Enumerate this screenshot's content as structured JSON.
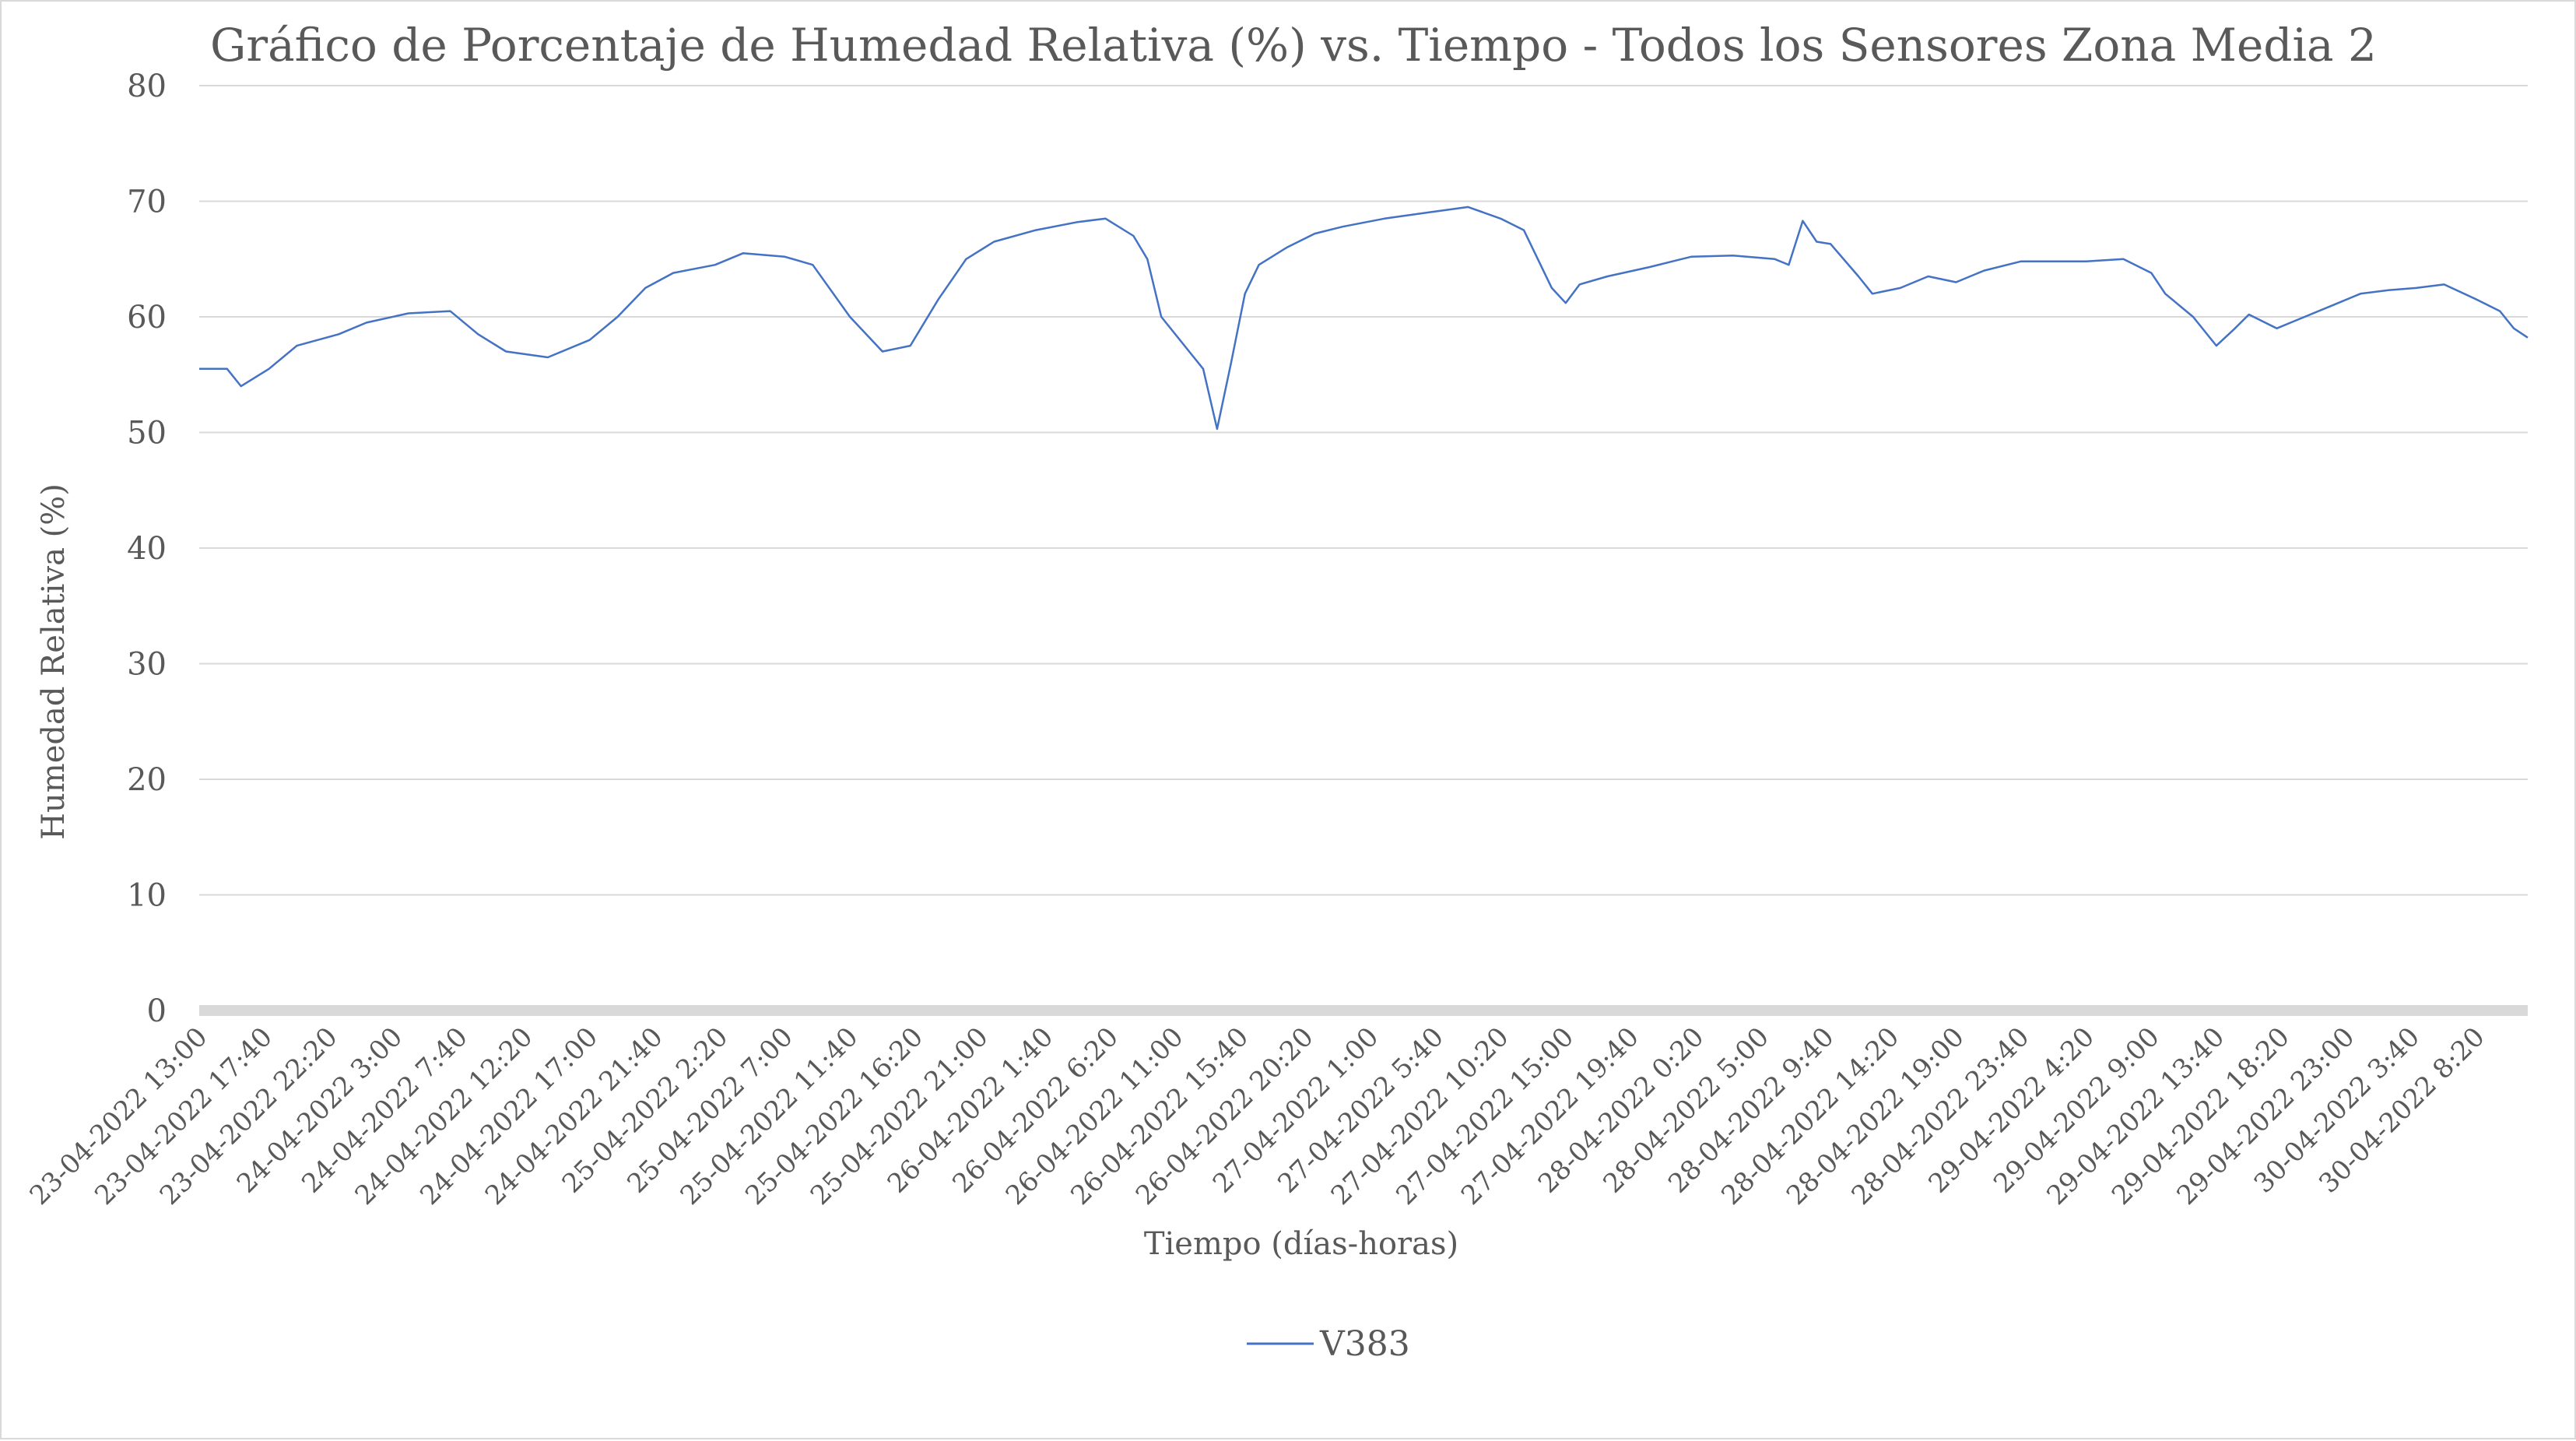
{
  "chart_data": {
    "type": "line",
    "title": "Gráfico de Porcentaje de Humedad Relativa (%) vs. Tiempo - Todos los Sensores Zona Media 2",
    "xlabel": "Tiempo (días-horas)",
    "ylabel": "Humedad Relativa (%)",
    "ylim": [
      0,
      80
    ],
    "yticks": [
      "0",
      "10",
      "20",
      "30",
      "40",
      "50",
      "60",
      "70",
      "80"
    ],
    "grid": true,
    "legend_position": "bottom",
    "colors": {
      "series": "#4472c4",
      "grid": "#d9d9d9",
      "text": "#595959"
    },
    "x_tick_labels": [
      "23-04-2022 13:00",
      "23-04-2022 17:40",
      "23-04-2022 22:20",
      "24-04-2022 3:00",
      "24-04-2022 7:40",
      "24-04-2022 12:20",
      "24-04-2022 17:00",
      "24-04-2022 21:40",
      "25-04-2022 2:20",
      "25-04-2022 7:00",
      "25-04-2022 11:40",
      "25-04-2022 16:20",
      "25-04-2022 21:00",
      "26-04-2022 1:40",
      "26-04-2022 6:20",
      "26-04-2022 11:00",
      "26-04-2022 15:40",
      "26-04-2022 20:20",
      "27-04-2022 1:00",
      "27-04-2022 5:40",
      "27-04-2022 10:20",
      "27-04-2022 15:00",
      "27-04-2022 19:40",
      "28-04-2022 0:20",
      "28-04-2022 5:00",
      "28-04-2022 9:40",
      "28-04-2022 14:20",
      "28-04-2022 19:00",
      "28-04-2022 23:40",
      "29-04-2022 4:20",
      "29-04-2022 9:00",
      "29-04-2022 13:40",
      "29-04-2022 18:20",
      "29-04-2022 23:00",
      "30-04-2022 3:40",
      "30-04-2022 8:20"
    ],
    "series": [
      {
        "name": "V383",
        "x": [
          "23-04-2022 13:00",
          "23-04-2022 15:00",
          "23-04-2022 16:00",
          "23-04-2022 18:00",
          "23-04-2022 20:00",
          "23-04-2022 23:00",
          "24-04-2022 1:00",
          "24-04-2022 4:00",
          "24-04-2022 7:00",
          "24-04-2022 9:00",
          "24-04-2022 11:00",
          "24-04-2022 14:00",
          "24-04-2022 17:00",
          "24-04-2022 19:00",
          "24-04-2022 21:00",
          "24-04-2022 23:00",
          "25-04-2022 2:00",
          "25-04-2022 4:00",
          "25-04-2022 7:00",
          "25-04-2022 9:00",
          "25-04-2022 11:40",
          "25-04-2022 14:00",
          "25-04-2022 16:00",
          "25-04-2022 18:00",
          "25-04-2022 20:00",
          "25-04-2022 22:00",
          "26-04-2022 1:00",
          "26-04-2022 4:00",
          "26-04-2022 6:00",
          "26-04-2022 8:00",
          "26-04-2022 9:00",
          "26-04-2022 10:00",
          "26-04-2022 12:00",
          "26-04-2022 13:00",
          "26-04-2022 14:00",
          "26-04-2022 15:00",
          "26-04-2022 16:00",
          "26-04-2022 17:00",
          "26-04-2022 19:00",
          "26-04-2022 21:00",
          "26-04-2022 23:00",
          "27-04-2022 2:00",
          "27-04-2022 5:00",
          "27-04-2022 8:00",
          "27-04-2022 10:20",
          "27-04-2022 12:00",
          "27-04-2022 14:00",
          "27-04-2022 15:00",
          "27-04-2022 16:00",
          "27-04-2022 18:00",
          "27-04-2022 21:00",
          "28-04-2022 0:00",
          "28-04-2022 3:00",
          "28-04-2022 6:00",
          "28-04-2022 7:00",
          "28-04-2022 8:00",
          "28-04-2022 9:00",
          "28-04-2022 10:00",
          "28-04-2022 12:00",
          "28-04-2022 13:00",
          "28-04-2022 15:00",
          "28-04-2022 17:00",
          "28-04-2022 19:00",
          "28-04-2022 21:00",
          "28-04-2022 23:40",
          "29-04-2022 2:00",
          "29-04-2022 4:20",
          "29-04-2022 7:00",
          "29-04-2022 9:00",
          "29-04-2022 10:00",
          "29-04-2022 12:00",
          "29-04-2022 13:40",
          "29-04-2022 15:00",
          "29-04-2022 16:00",
          "29-04-2022 18:00",
          "29-04-2022 19:00",
          "29-04-2022 20:00",
          "29-04-2022 22:00",
          "30-04-2022 0:00",
          "30-04-2022 2:00",
          "30-04-2022 4:00",
          "30-04-2022 6:00",
          "30-04-2022 8:20",
          "30-04-2022 10:00",
          "30-04-2022 11:00",
          "30-04-2022 12:00"
        ],
        "values": [
          55.5,
          55.5,
          54.0,
          55.5,
          57.5,
          58.5,
          59.5,
          60.3,
          60.5,
          58.5,
          57.0,
          56.5,
          58.0,
          60.0,
          62.5,
          63.8,
          64.5,
          65.5,
          65.2,
          64.5,
          60.0,
          57.0,
          57.5,
          61.5,
          65.0,
          66.5,
          67.5,
          68.2,
          68.5,
          67.0,
          65.0,
          60.0,
          57.0,
          55.5,
          50.3,
          56.0,
          62.0,
          64.5,
          66.0,
          67.2,
          67.8,
          68.5,
          69.0,
          69.5,
          68.5,
          67.5,
          62.5,
          61.2,
          62.8,
          63.5,
          64.3,
          65.2,
          65.3,
          65.0,
          64.5,
          68.3,
          66.5,
          66.3,
          63.5,
          62.0,
          62.5,
          63.5,
          63.0,
          64.0,
          64.8,
          64.8,
          64.8,
          65.0,
          63.8,
          62.0,
          60.0,
          57.5,
          59.0,
          60.2,
          59.0,
          59.5,
          60.0,
          61.0,
          62.0,
          62.3,
          62.5,
          62.8,
          61.5,
          60.5,
          59.0,
          58.2
        ]
      }
    ]
  }
}
